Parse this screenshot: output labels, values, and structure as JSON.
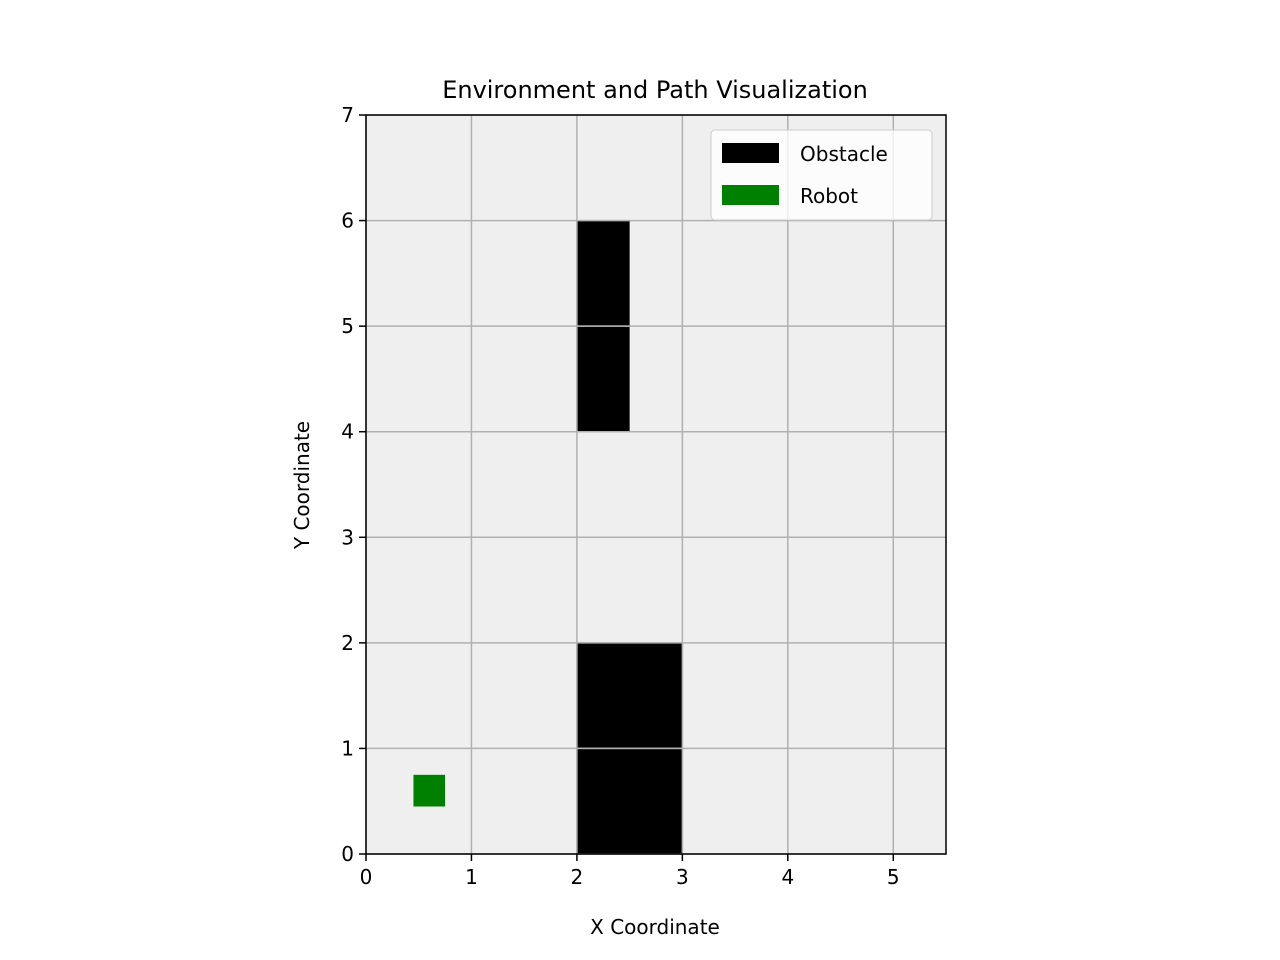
{
  "chart_data": {
    "type": "scatter",
    "title": "Environment and Path Visualization",
    "xlabel": "X Coordinate",
    "ylabel": "Y Coordinate",
    "xlim": [
      0,
      5.5
    ],
    "ylim": [
      0,
      7
    ],
    "xticks": [
      0,
      1,
      2,
      3,
      4,
      5
    ],
    "yticks": [
      0,
      1,
      2,
      3,
      4,
      5,
      6,
      7
    ],
    "grid": true,
    "legend_position": "top-right",
    "background_color": "#efefef",
    "grid_color": "#b0b0b0",
    "obstacles": [
      {
        "x": [
          2,
          2.5
        ],
        "y": [
          5,
          6
        ]
      },
      {
        "x": [
          2,
          2.5
        ],
        "y": [
          4,
          5
        ]
      },
      {
        "x": [
          2,
          3
        ],
        "y": [
          1,
          2
        ]
      },
      {
        "x": [
          2,
          3
        ],
        "y": [
          0,
          1
        ]
      }
    ],
    "robot": {
      "x": [
        0.45,
        0.75
      ],
      "y": [
        0.45,
        0.75
      ]
    },
    "legend": [
      {
        "label": "Obstacle",
        "color": "#000000"
      },
      {
        "label": "Robot",
        "color": "#008000"
      }
    ]
  }
}
